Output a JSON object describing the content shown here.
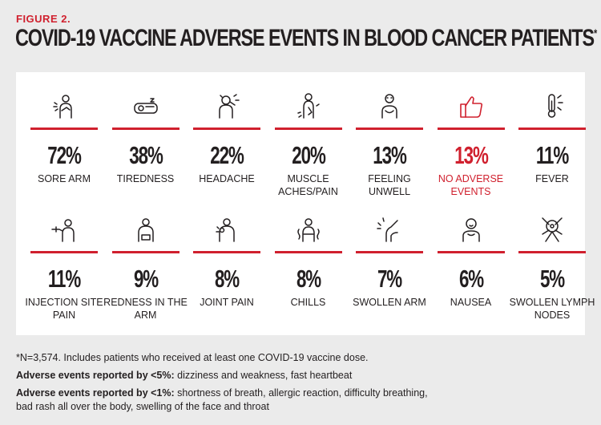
{
  "figure_label": "FIGURE 2.",
  "title": "COVID-19 VACCINE ADVERSE EVENTS IN BLOOD CANCER PATIENTS",
  "title_mark": "*",
  "colors": {
    "accent": "#d0202e",
    "text": "#231f20",
    "background": "#ebebeb",
    "panel": "#ffffff"
  },
  "chart_data": {
    "type": "table",
    "unit": "%",
    "items": [
      {
        "label": "SORE ARM",
        "value": 72,
        "display": "72%",
        "icon": "sore-arm-icon"
      },
      {
        "label": "TIREDNESS",
        "value": 38,
        "display": "38%",
        "icon": "tiredness-icon"
      },
      {
        "label": "HEADACHE",
        "value": 22,
        "display": "22%",
        "icon": "headache-icon"
      },
      {
        "label": "MUSCLE ACHES/PAIN",
        "value": 20,
        "display": "20%",
        "icon": "muscle-aches-icon"
      },
      {
        "label": "FEELING UNWELL",
        "value": 13,
        "display": "13%",
        "icon": "feeling-unwell-icon"
      },
      {
        "label": "NO ADVERSE EVENTS",
        "value": 13,
        "display": "13%",
        "icon": "thumbs-up-icon",
        "highlight": true
      },
      {
        "label": "FEVER",
        "value": 11,
        "display": "11%",
        "icon": "thermometer-icon"
      },
      {
        "label": "INJECTION SITE PAIN",
        "value": 11,
        "display": "11%",
        "icon": "injection-icon"
      },
      {
        "label": "REDNESS IN THE ARM",
        "value": 9,
        "display": "9%",
        "icon": "redness-arm-icon"
      },
      {
        "label": "JOINT PAIN",
        "value": 8,
        "display": "8%",
        "icon": "joint-pain-icon"
      },
      {
        "label": "CHILLS",
        "value": 8,
        "display": "8%",
        "icon": "chills-icon"
      },
      {
        "label": "SWOLLEN ARM",
        "value": 7,
        "display": "7%",
        "icon": "swollen-arm-icon"
      },
      {
        "label": "NAUSEA",
        "value": 6,
        "display": "6%",
        "icon": "nausea-icon"
      },
      {
        "label": "SWOLLEN LYMPH NODES",
        "value": 5,
        "display": "5%",
        "icon": "lymph-nodes-icon"
      }
    ]
  },
  "footnotes": {
    "n_note": "*N=3,574. Includes patients who received at least one COVID-19 vaccine dose.",
    "lt5_label": "Adverse events reported by <5%:",
    "lt5_text": " dizziness and weakness, fast heartbeat",
    "lt1_label": "Adverse events reported by <1%:",
    "lt1_text_1": " shortness of breath, allergic reaction, difficulty breathing,",
    "lt1_text_2": "bad rash all over the body, swelling of the face and throat"
  }
}
